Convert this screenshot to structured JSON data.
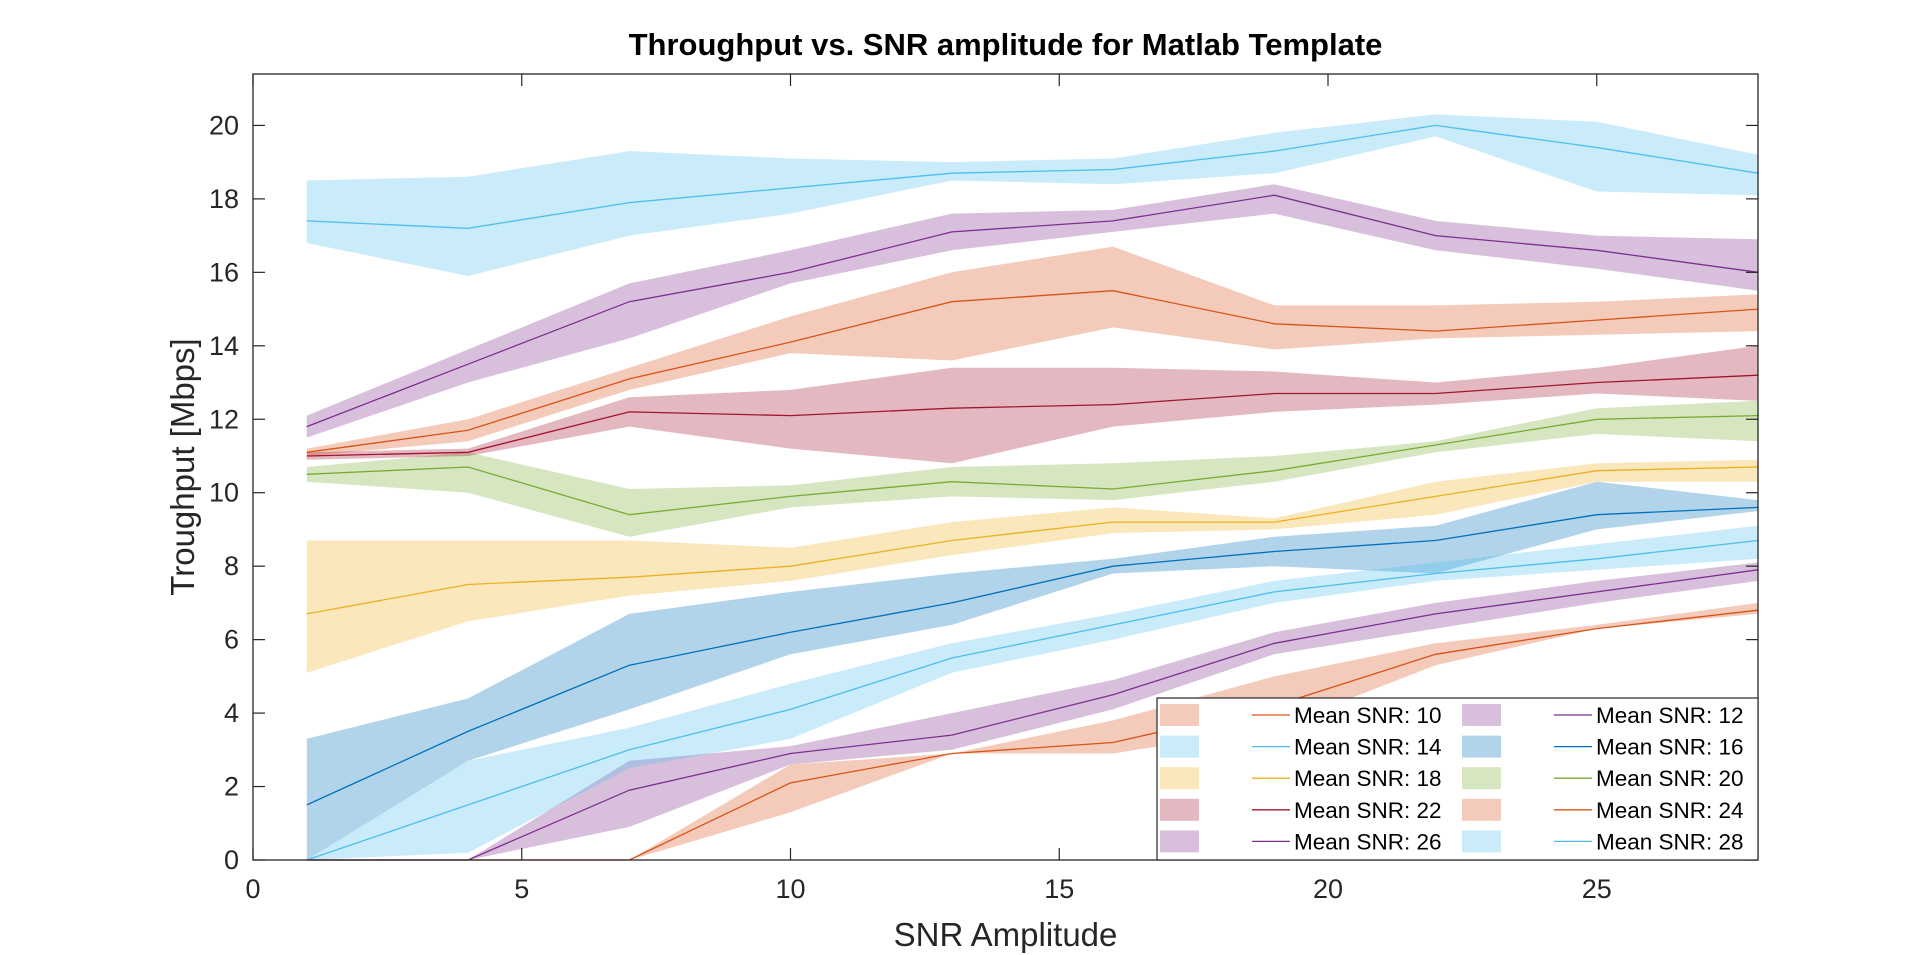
{
  "chart_data": {
    "type": "area",
    "title": "Throughput vs. SNR amplitude for Matlab Template",
    "xlabel": "SNR Amplitude",
    "ylabel": "Troughput [Mbps]",
    "xlim": [
      0,
      28
    ],
    "ylim": [
      0,
      21.4
    ],
    "xticks": [
      0,
      5,
      10,
      15,
      20,
      25
    ],
    "yticks": [
      0,
      2,
      4,
      6,
      8,
      10,
      12,
      14,
      16,
      18,
      20
    ],
    "x": [
      1,
      4,
      7,
      10,
      13,
      16,
      19,
      22,
      25,
      28
    ],
    "grid": false,
    "legend_placement": "bottom-right",
    "series": [
      {
        "name": "Mean SNR: 10",
        "color": "#D95319",
        "mean": [
          11.1,
          11.7,
          13.1,
          14.1,
          15.2,
          15.5,
          14.6,
          14.4,
          14.7,
          15.0
        ],
        "upper": [
          11.2,
          12.0,
          13.4,
          14.8,
          16.0,
          16.7,
          15.1,
          15.1,
          15.2,
          15.4
        ],
        "lower": [
          11.0,
          11.4,
          12.8,
          13.8,
          13.6,
          14.5,
          13.9,
          14.2,
          14.3,
          14.4
        ]
      },
      {
        "name": "Mean SNR: 12",
        "color": "#7E2F8E",
        "mean": [
          11.8,
          13.5,
          15.2,
          16.0,
          17.1,
          17.4,
          18.1,
          17.0,
          16.6,
          16.0
        ],
        "upper": [
          12.1,
          13.9,
          15.7,
          16.6,
          17.6,
          17.7,
          18.4,
          17.4,
          17.0,
          16.9
        ],
        "lower": [
          11.5,
          13.0,
          14.2,
          15.7,
          16.6,
          17.1,
          17.6,
          16.6,
          16.1,
          15.5
        ]
      },
      {
        "name": "Mean SNR: 14",
        "color": "#4DBEEE",
        "mean": [
          17.4,
          17.2,
          17.9,
          18.3,
          18.7,
          18.8,
          19.3,
          20.0,
          19.4,
          18.7
        ],
        "upper": [
          18.5,
          18.6,
          19.3,
          19.1,
          19.0,
          19.1,
          19.8,
          20.3,
          20.1,
          19.2
        ],
        "lower": [
          16.8,
          15.9,
          17.0,
          17.6,
          18.5,
          18.4,
          18.7,
          19.7,
          18.2,
          18.1
        ]
      },
      {
        "name": "Mean SNR: 16",
        "color": "#0072BD",
        "mean": [
          1.5,
          3.5,
          5.3,
          6.2,
          7.0,
          8.0,
          8.4,
          8.7,
          9.4,
          9.6
        ],
        "upper": [
          3.3,
          4.4,
          6.7,
          7.3,
          7.8,
          8.2,
          8.8,
          9.1,
          10.3,
          9.8
        ],
        "lower": [
          0.0,
          2.7,
          4.1,
          5.6,
          6.4,
          7.8,
          8.0,
          7.8,
          9.0,
          9.5
        ]
      },
      {
        "name": "Mean SNR: 18",
        "color": "#EDB120",
        "mean": [
          6.7,
          7.5,
          7.7,
          8.0,
          8.7,
          9.2,
          9.2,
          9.9,
          10.6,
          10.7
        ],
        "upper": [
          8.7,
          8.7,
          8.7,
          8.5,
          9.2,
          9.6,
          9.3,
          10.3,
          10.8,
          10.9
        ],
        "lower": [
          5.1,
          6.5,
          7.2,
          7.6,
          8.3,
          8.9,
          9.0,
          9.4,
          10.3,
          10.3
        ]
      },
      {
        "name": "Mean SNR: 20",
        "color": "#77AC30",
        "mean": [
          10.5,
          10.7,
          9.4,
          9.9,
          10.3,
          10.1,
          10.6,
          11.3,
          12.0,
          12.1
        ],
        "upper": [
          10.7,
          11.1,
          10.1,
          10.2,
          10.7,
          10.8,
          11.0,
          11.4,
          12.3,
          12.5
        ],
        "lower": [
          10.3,
          10.0,
          8.8,
          9.6,
          9.9,
          9.8,
          10.3,
          11.1,
          11.6,
          11.4
        ]
      },
      {
        "name": "Mean SNR: 22",
        "color": "#A2142F",
        "mean": [
          11.0,
          11.1,
          12.2,
          12.1,
          12.3,
          12.4,
          12.7,
          12.7,
          13.0,
          13.2
        ],
        "upper": [
          11.1,
          11.2,
          12.6,
          12.8,
          13.4,
          13.4,
          13.3,
          13.0,
          13.4,
          14.0
        ],
        "lower": [
          10.9,
          11.0,
          11.8,
          11.2,
          10.8,
          11.8,
          12.2,
          12.4,
          12.7,
          12.5
        ]
      },
      {
        "name": "Mean SNR: 24",
        "color": "#D95319",
        "mean": [
          0.0,
          0.0,
          0.0,
          2.1,
          2.9,
          3.2,
          4.2,
          5.6,
          6.3,
          6.8
        ],
        "upper": [
          0.0,
          0.0,
          0.0,
          2.6,
          2.9,
          3.8,
          5.0,
          5.9,
          6.4,
          7.0
        ],
        "lower": [
          0.0,
          0.0,
          0.0,
          1.3,
          2.9,
          2.9,
          3.6,
          5.3,
          6.3,
          6.7
        ]
      },
      {
        "name": "Mean SNR: 26",
        "color": "#7E2F8E",
        "mean": [
          0.0,
          0.0,
          1.9,
          2.9,
          3.4,
          4.5,
          5.9,
          6.7,
          7.3,
          7.9
        ],
        "upper": [
          0.0,
          0.0,
          2.7,
          3.1,
          4.0,
          4.9,
          6.2,
          7.0,
          7.6,
          8.1
        ],
        "lower": [
          0.0,
          0.0,
          0.9,
          2.6,
          3.0,
          4.1,
          5.6,
          6.3,
          7.0,
          7.6
        ]
      },
      {
        "name": "Mean SNR: 28",
        "color": "#4DBEEE",
        "mean": [
          0.0,
          1.5,
          3.0,
          4.1,
          5.5,
          6.4,
          7.3,
          7.8,
          8.2,
          8.7
        ],
        "upper": [
          0.0,
          2.7,
          3.6,
          4.8,
          5.9,
          6.7,
          7.6,
          8.1,
          8.6,
          9.1
        ],
        "lower": [
          0.0,
          0.2,
          2.5,
          3.3,
          5.1,
          6.0,
          7.0,
          7.6,
          7.9,
          8.2
        ]
      }
    ],
    "band_opacity": 0.3
  }
}
